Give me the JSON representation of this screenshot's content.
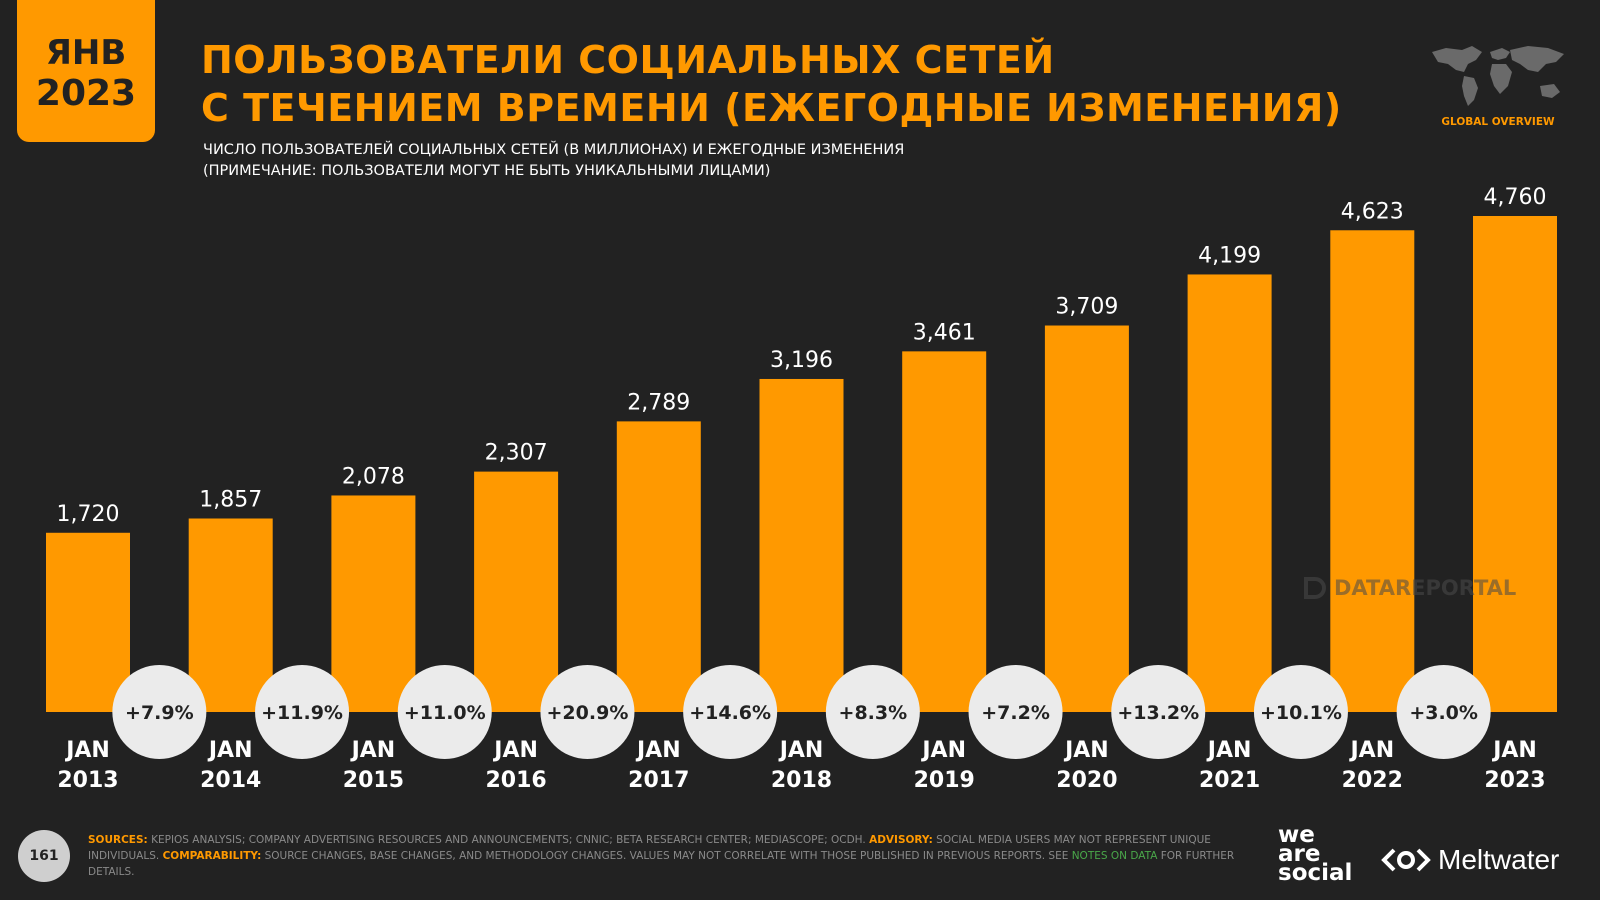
{
  "badge": {
    "month": "ЯНВ",
    "year": "2023"
  },
  "header": {
    "title_line1": "ПОЛЬЗОВАТЕЛИ СОЦИАЛЬНЫХ СЕТЕЙ",
    "title_line2": "С ТЕЧЕНИЕМ ВРЕМЕНИ (ЕЖЕГОДНЫЕ ИЗМЕНЕНИЯ)",
    "subtitle_line1": "ЧИСЛО ПОЛЬЗОВАТЕЛЕЙ СОЦИАЛЬНЫХ СЕТЕЙ (В МИЛЛИОНАХ) И ЕЖЕГОДНЫЕ ИЗМЕНЕНИЯ",
    "subtitle_line2": "(ПРИМЕЧАНИЕ: ПОЛЬЗОВАТЕЛИ МОГУТ НЕ БЫТЬ УНИКАЛЬНЫМИ ЛИЦАМИ)",
    "global_label": "GLOBAL OVERVIEW",
    "globe_icon": "world-map-icon"
  },
  "chart_data": {
    "type": "bar",
    "categories": [
      [
        "JAN",
        "2013"
      ],
      [
        "JAN",
        "2014"
      ],
      [
        "JAN",
        "2015"
      ],
      [
        "JAN",
        "2016"
      ],
      [
        "JAN",
        "2017"
      ],
      [
        "JAN",
        "2018"
      ],
      [
        "JAN",
        "2019"
      ],
      [
        "JAN",
        "2020"
      ],
      [
        "JAN",
        "2021"
      ],
      [
        "JAN",
        "2022"
      ],
      [
        "JAN",
        "2023"
      ]
    ],
    "values": [
      1720,
      1857,
      2078,
      2307,
      2789,
      3196,
      3461,
      3709,
      4199,
      4623,
      4760
    ],
    "value_labels": [
      "1,720",
      "1,857",
      "2,078",
      "2,307",
      "2,789",
      "3,196",
      "3,461",
      "3,709",
      "4,199",
      "4,623",
      "4,760"
    ],
    "changes": [
      "+7.9%",
      "+11.9%",
      "+11.0%",
      "+20.9%",
      "+14.6%",
      "+8.3%",
      "+7.2%",
      "+13.2%",
      "+10.1%",
      "+3.0%"
    ],
    "ylim": [
      0,
      4760
    ],
    "grid": false,
    "legend": "none",
    "bar_color": "#ff9900",
    "change_bubble_color": "#ebebeb"
  },
  "watermark": {
    "text": "DATAREPORTAL"
  },
  "footer": {
    "page_number": "161",
    "sources_label": "SOURCES:",
    "sources_text": " KEPIOS ANALYSIS; COMPANY ADVERTISING RESOURCES AND ANNOUNCEMENTS; CNNIC; BETA RESEARCH CENTER; MEDIASCOPE; OCDH. ",
    "advisory_label": "ADVISORY:",
    "advisory_text": " SOCIAL MEDIA USERS MAY NOT REPRESENT UNIQUE INDIVIDUALS. ",
    "comparability_label": "COMPARABILITY:",
    "comparability_text": " SOURCE CHANGES, BASE CHANGES, AND METHODOLOGY CHANGES. VALUES MAY NOT CORRELATE WITH THOSE PUBLISHED IN PREVIOUS REPORTS. SEE ",
    "notes_link": "NOTES ON DATA",
    "tail_text": " FOR FURTHER DETAILS."
  },
  "brands": {
    "was_1": "we",
    "was_2": "are",
    "was_3": "social",
    "meltwater": "Meltwater"
  },
  "colors": {
    "accent": "#ff9900",
    "background": "#222222"
  }
}
